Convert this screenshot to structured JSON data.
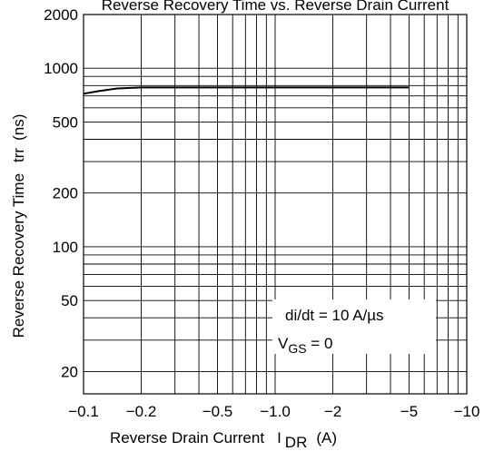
{
  "chart_data": {
    "type": "line",
    "title": "Reverse Recovery Time vs. Reverse Drain Current",
    "xlabel": "Reverse Drain Current",
    "xsymbol": "I",
    "xsymbol_sub": "DR",
    "xunit": "(A)",
    "ylabel": "Reverse Recovery Time",
    "ysymbol": "trr",
    "yunit": "(ns)",
    "x_scale": "log-negative",
    "y_scale": "log",
    "xlim": [
      -0.1,
      -10
    ],
    "ylim": [
      15,
      2000
    ],
    "grid": true,
    "x_major_ticks": [
      {
        "value": -0.1,
        "label": "−0.1"
      },
      {
        "value": -0.2,
        "label": "−0.2"
      },
      {
        "value": -0.5,
        "label": "−0.5"
      },
      {
        "value": -1.0,
        "label": "−1.0"
      },
      {
        "value": -2,
        "label": "−2"
      },
      {
        "value": -5,
        "label": "−5"
      },
      {
        "value": -10,
        "label": "−10"
      }
    ],
    "y_major_ticks": [
      {
        "value": 2000,
        "label": "2000"
      },
      {
        "value": 1000,
        "label": "1000"
      },
      {
        "value": 500,
        "label": "500"
      },
      {
        "value": 200,
        "label": "200"
      },
      {
        "value": 100,
        "label": "100"
      },
      {
        "value": 50,
        "label": "50"
      },
      {
        "value": 20,
        "label": "20"
      }
    ],
    "series": [
      {
        "x": [
          -0.1,
          -0.12,
          -0.15,
          -0.2,
          -0.3,
          -0.5,
          -1.0,
          -2,
          -5
        ],
        "y": [
          720,
          745,
          770,
          780,
          780,
          780,
          780,
          780,
          780
        ]
      }
    ],
    "annotation": {
      "line1": "di/dt = 10 A/µs",
      "line2_main": "V",
      "line2_sub": "GS",
      "line2_tail": " = 0"
    }
  }
}
